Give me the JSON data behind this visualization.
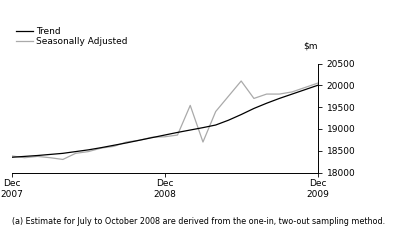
{
  "footnote": "(a) Estimate for July to October 2008 are derived from the one-in, two-out sampling method.",
  "ylim": [
    18000,
    20500
  ],
  "yticks": [
    18000,
    18500,
    19000,
    19500,
    20000,
    20500
  ],
  "xtick_positions": [
    0,
    12,
    24
  ],
  "xtick_labels": [
    "Dec\n2007",
    "Dec\n2008",
    "Dec\n2009"
  ],
  "trend_x": [
    0,
    1,
    2,
    3,
    4,
    5,
    6,
    7,
    8,
    9,
    10,
    11,
    12,
    13,
    14,
    15,
    16,
    17,
    18,
    19,
    20,
    21,
    22,
    23,
    24
  ],
  "trend_y": [
    18350,
    18370,
    18390,
    18415,
    18440,
    18480,
    18520,
    18570,
    18625,
    18680,
    18740,
    18800,
    18860,
    18920,
    18975,
    19030,
    19090,
    19200,
    19330,
    19470,
    19590,
    19700,
    19800,
    19900,
    20000
  ],
  "seas_x": [
    0,
    1,
    2,
    3,
    4,
    5,
    6,
    7,
    8,
    9,
    10,
    11,
    12,
    13,
    14,
    15,
    16,
    17,
    18,
    19,
    20,
    21,
    22,
    23,
    24
  ],
  "seas_y": [
    18380,
    18340,
    18370,
    18340,
    18300,
    18440,
    18480,
    18560,
    18600,
    18700,
    18740,
    18810,
    18820,
    18860,
    19540,
    18700,
    19400,
    19750,
    20100,
    19700,
    19800,
    19800,
    19850,
    19950,
    20050
  ],
  "trend_color": "#000000",
  "seas_color": "#aaaaaa",
  "trend_lw": 0.9,
  "seas_lw": 0.9,
  "legend_trend": "Trend",
  "legend_seas": "Seasonally Adjusted",
  "bg_color": "#ffffff",
  "fontsize": 6.5,
  "footnote_fontsize": 5.8
}
